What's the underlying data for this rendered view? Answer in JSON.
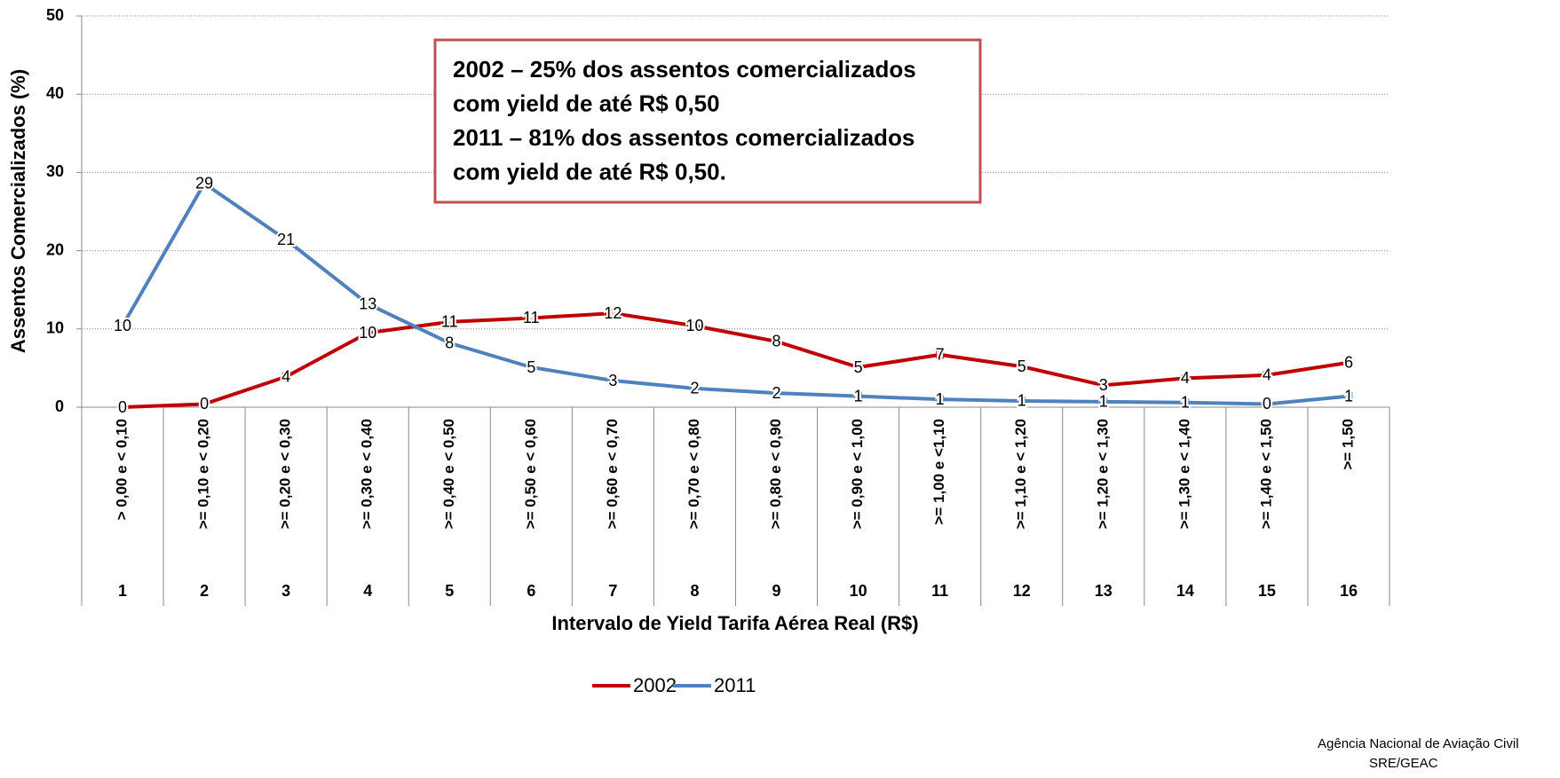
{
  "chart_data": {
    "type": "line",
    "y_axis_label": "Assentos Comercializados (%)",
    "x_axis_label": "Intervalo de Yield Tarifa Aérea Real (R$)",
    "annotation": [
      "2002 – 25% dos assentos comercializados",
      "com yield de até  R$ 0,50",
      "2011 – 81% dos assentos comercializados",
      "com yield de até  R$ 0,50."
    ],
    "footer": [
      "Agência Nacional de Aviação Civil",
      "SRE/GEAC"
    ],
    "category_numbers": [
      "1",
      "2",
      "3",
      "4",
      "5",
      "6",
      "7",
      "8",
      "9",
      "10",
      "11",
      "12",
      "13",
      "14",
      "15",
      "16"
    ],
    "categories": [
      "> 0,00 e < 0,10",
      ">= 0,10 e < 0,20",
      ">= 0,20 e < 0,30",
      ">= 0,30 e < 0,40",
      ">= 0,40 e < 0,50",
      ">= 0,50 e < 0,60",
      ">= 0,60 e < 0,70",
      ">= 0,70 e < 0,80",
      ">= 0,80 e < 0,90",
      ">= 0,90 e < 1,00",
      ">= 1,00 e <1,10",
      ">= 1,10 e < 1,20",
      ">= 1,20 e < 1,30",
      ">= 1,30 e < 1,40",
      ">= 1,40 e < 1,50",
      ">= 1,50"
    ],
    "series": [
      {
        "name": "2002",
        "color": "#c00000",
        "values": [
          0,
          0.4,
          3.9,
          9.5,
          10.9,
          11.4,
          12.0,
          10.4,
          8.4,
          5.1,
          6.7,
          5.2,
          2.8,
          3.7,
          4.1,
          5.7
        ],
        "value_labels": [
          "0",
          "0",
          "4",
          "10",
          "11",
          "11",
          "12",
          "10",
          "8",
          "5",
          "7",
          "5",
          "3",
          "4",
          "4",
          "6"
        ]
      },
      {
        "name": "2011",
        "color": "#4f81bd",
        "values": [
          10.4,
          28.6,
          21.4,
          13.2,
          8.2,
          5.1,
          3.4,
          2.4,
          1.8,
          1.4,
          1.0,
          0.8,
          0.7,
          0.6,
          0.4,
          1.4
        ],
        "value_labels": [
          "10",
          "29",
          "21",
          "13",
          "8",
          "5",
          "3",
          "2",
          "2",
          "1",
          "1",
          "1",
          "1",
          "1",
          "0",
          "1"
        ]
      }
    ],
    "ylim": [
      0,
      50
    ],
    "yticks": [
      0,
      10,
      20,
      30,
      40,
      50
    ],
    "grid": true,
    "legend": "bottom"
  }
}
